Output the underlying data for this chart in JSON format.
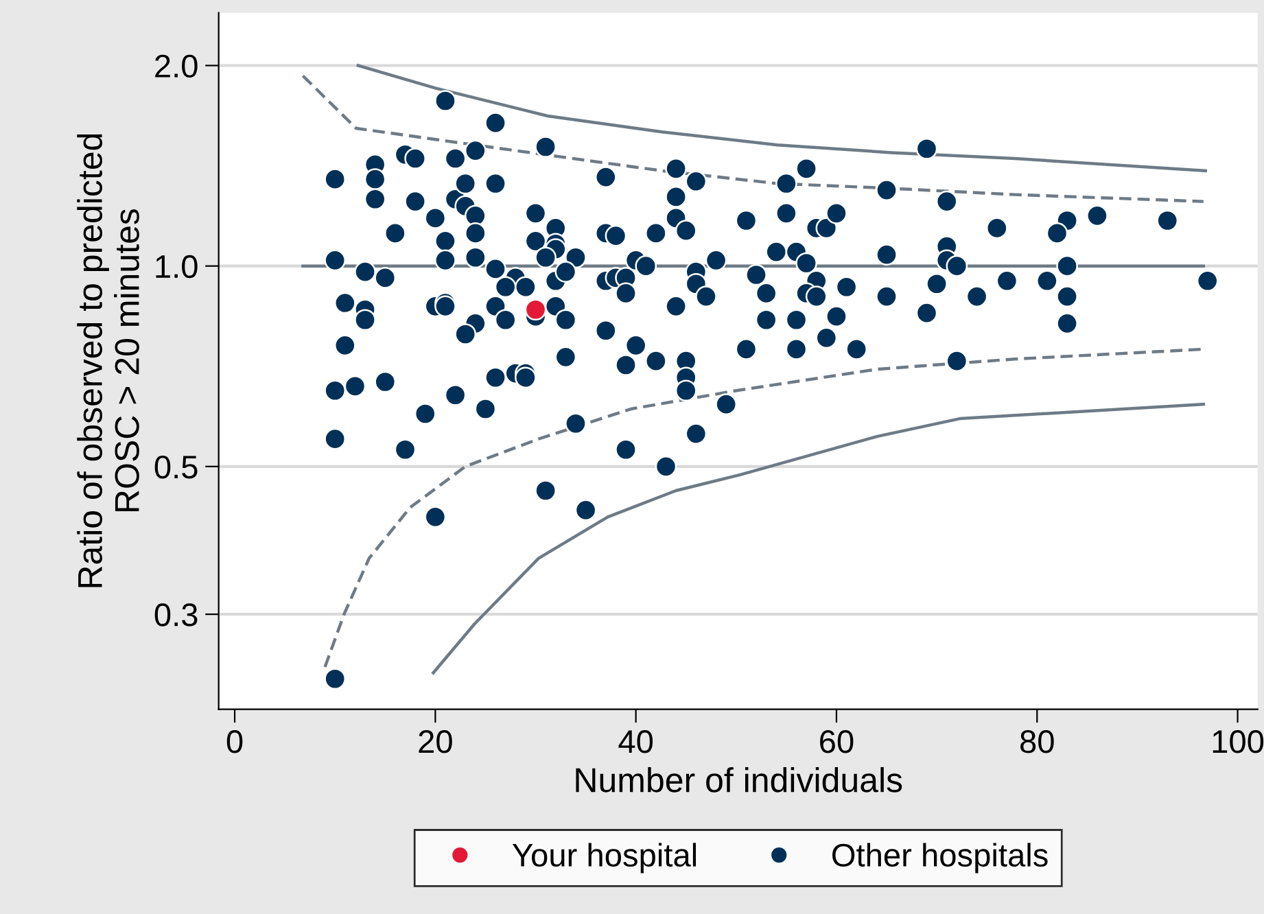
{
  "chart_data": {
    "type": "scatter",
    "xlabel": "Number of individuals",
    "ylabel": "Ratio of observed to predicted\nROSC > 20 minutes",
    "log": "y",
    "xlim": [
      -1.6,
      102
    ],
    "ylim": [
      0.216,
      2.4
    ],
    "xticks": [
      0,
      20,
      40,
      60,
      80,
      100
    ],
    "yticks": [
      {
        "value": 2,
        "label": "2.0"
      },
      {
        "value": 1,
        "label": "1.0"
      },
      {
        "value": 0.5,
        "label": "0.5"
      },
      {
        "value": 0.3,
        "label": "0.3"
      }
    ],
    "grid": "y",
    "legend": "bottom",
    "series": [
      {
        "type": "line",
        "line_style": "solid",
        "color": "#6e7b86",
        "x": [
          12.3,
          20,
          31.2,
          42.6,
          54.1,
          65.5,
          77.8,
          96.8
        ],
        "values": [
          2.0,
          1.85,
          1.68,
          1.59,
          1.52,
          1.48,
          1.45,
          1.39
        ]
      },
      {
        "type": "line",
        "line_style": "dashed",
        "color": "#6e7b86",
        "x": [
          6.8,
          12.1,
          21.2,
          32.3,
          42.6,
          54.1,
          64.5,
          77.8,
          96.6
        ],
        "values": [
          1.93,
          1.61,
          1.54,
          1.46,
          1.39,
          1.33,
          1.31,
          1.28,
          1.25
        ]
      },
      {
        "type": "line",
        "line_style": "solid",
        "color": "#6e7b86",
        "x": [
          6.8,
          96.6
        ],
        "values": [
          1,
          1
        ]
      },
      {
        "type": "line",
        "line_style": "dashed",
        "color": "#6e7b86",
        "x": [
          9.0,
          10.9,
          13.4,
          17.5,
          23.0,
          30.3,
          39.5,
          50.0,
          64.1,
          77.8,
          96.6
        ],
        "values": [
          0.25,
          0.3,
          0.364,
          0.434,
          0.5,
          0.55,
          0.61,
          0.65,
          0.7,
          0.725,
          0.75
        ]
      },
      {
        "type": "line",
        "line_style": "solid",
        "color": "#6e7b86",
        "x": [
          19.8,
          23.9,
          30.3,
          37.2,
          44.0,
          50.4,
          64.1,
          72.3,
          96.6
        ],
        "values": [
          0.245,
          0.29,
          0.364,
          0.42,
          0.46,
          0.486,
          0.555,
          0.59,
          0.62
        ]
      },
      {
        "marker": "circle",
        "name": "Other hospitals",
        "color": "#003057",
        "x": [
          21,
          26,
          31,
          17,
          18,
          22,
          24,
          14,
          14,
          10,
          14,
          18,
          22,
          23,
          26,
          23,
          24,
          20,
          30,
          32,
          32,
          32,
          16,
          21,
          24,
          30,
          31,
          24,
          21,
          10,
          26,
          13,
          15,
          28,
          27,
          29,
          32,
          11,
          13,
          13,
          20,
          21,
          21,
          26,
          27,
          24,
          23,
          11,
          32,
          30,
          10,
          12,
          15,
          19,
          22,
          25,
          26,
          28,
          29,
          29,
          33,
          39,
          42,
          45,
          45,
          45,
          49,
          10,
          17,
          34,
          39,
          46,
          43,
          31,
          35,
          20,
          10,
          34,
          33,
          33,
          37,
          37,
          38,
          37,
          38,
          39,
          39,
          40,
          41,
          42,
          37,
          40,
          44,
          44,
          44,
          45,
          46,
          46,
          46,
          47,
          44,
          48,
          51,
          52,
          53,
          53,
          51,
          54,
          55,
          55,
          56,
          57,
          58,
          57,
          58,
          56,
          56,
          57,
          58,
          59,
          60,
          61,
          60,
          59,
          62,
          65,
          65,
          65,
          69,
          71,
          76,
          83,
          82,
          86,
          93,
          71,
          71,
          72,
          83,
          70,
          74,
          77,
          81,
          83,
          69,
          83,
          72,
          97
        ],
        "values": [
          1.77,
          1.64,
          1.51,
          1.47,
          1.45,
          1.45,
          1.49,
          1.42,
          1.35,
          1.35,
          1.26,
          1.25,
          1.26,
          1.33,
          1.33,
          1.23,
          1.19,
          1.18,
          1.2,
          1.14,
          1.08,
          1.06,
          1.12,
          1.09,
          1.12,
          1.09,
          1.03,
          1.03,
          1.02,
          1.02,
          0.99,
          0.98,
          0.96,
          0.96,
          0.93,
          0.93,
          0.95,
          0.88,
          0.86,
          0.83,
          0.87,
          0.88,
          0.87,
          0.87,
          0.83,
          0.82,
          0.79,
          0.76,
          0.87,
          0.84,
          0.65,
          0.66,
          0.67,
          0.6,
          0.64,
          0.61,
          0.68,
          0.69,
          0.69,
          0.68,
          0.73,
          0.71,
          0.72,
          0.72,
          0.68,
          0.65,
          0.62,
          0.55,
          0.53,
          0.58,
          0.53,
          0.56,
          0.5,
          0.46,
          0.43,
          0.42,
          0.24,
          1.03,
          0.98,
          0.83,
          1.36,
          1.12,
          1.11,
          0.95,
          0.96,
          0.96,
          0.91,
          1.02,
          1.0,
          1.12,
          0.8,
          0.76,
          1.4,
          1.27,
          1.18,
          1.13,
          1.34,
          0.98,
          0.94,
          0.9,
          0.87,
          1.02,
          1.17,
          0.97,
          0.91,
          0.83,
          0.75,
          1.05,
          1.2,
          1.33,
          1.05,
          1.01,
          0.95,
          0.91,
          0.9,
          0.83,
          0.75,
          1.4,
          1.14,
          1.14,
          1.2,
          0.93,
          0.84,
          0.78,
          0.75,
          1.3,
          1.04,
          0.9,
          1.5,
          1.25,
          1.14,
          1.17,
          1.12,
          1.19,
          1.17,
          1.07,
          1.02,
          1.0,
          1.0,
          0.94,
          0.9,
          0.95,
          0.95,
          0.9,
          0.85,
          0.82,
          0.72,
          0.95
        ]
      },
      {
        "marker": "circle",
        "name": "Your hospital",
        "color": "#e31937",
        "x": [
          30
        ],
        "values": [
          0.86
        ]
      }
    ]
  }
}
